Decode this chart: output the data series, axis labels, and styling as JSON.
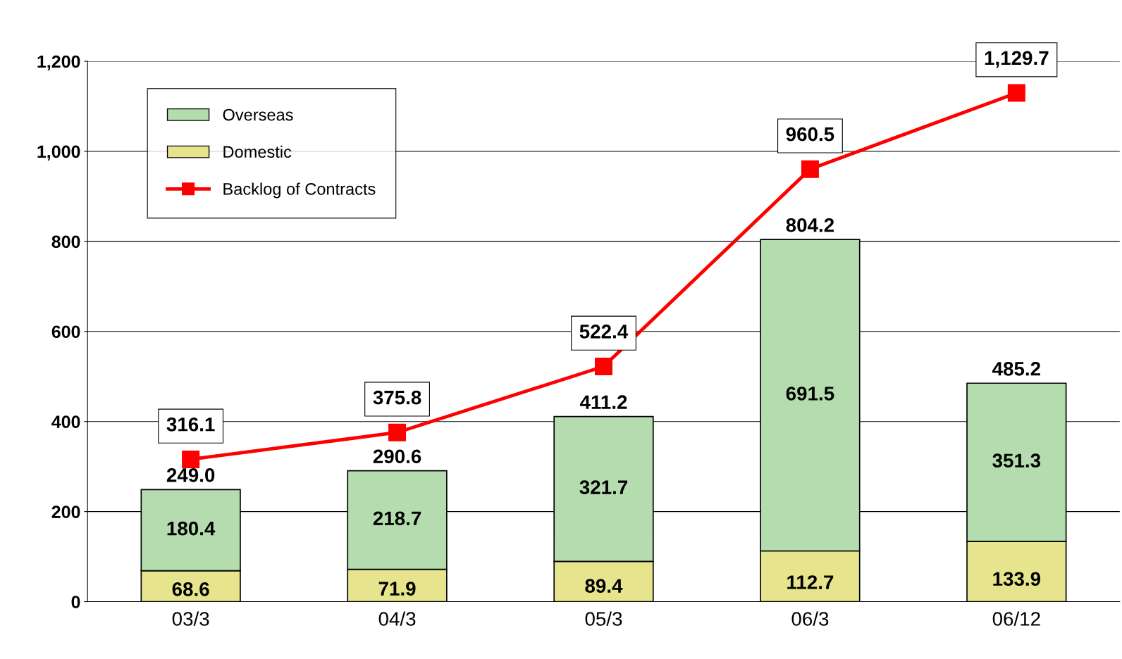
{
  "chart_data": {
    "type": "bar",
    "stacked": true,
    "categories": [
      "03/3",
      "04/3",
      "05/3",
      "06/3",
      "06/12"
    ],
    "series": [
      {
        "name": "Domestic",
        "color": "#e6e48c",
        "values": [
          68.6,
          71.9,
          89.4,
          112.7,
          133.9
        ],
        "value_labels": [
          "68.6",
          "71.9",
          "89.4",
          "112.7",
          "133.9"
        ]
      },
      {
        "name": "Overseas",
        "color": "#b4dcae",
        "values": [
          180.4,
          218.7,
          321.7,
          691.5,
          351.3
        ],
        "value_labels": [
          "180.4",
          "218.7",
          "321.7",
          "691.5",
          "351.3"
        ]
      },
      {
        "name": "Backlog of Contracts",
        "type": "line",
        "color": "#ff0000",
        "marker": "square",
        "values": [
          316.1,
          375.8,
          522.4,
          960.5,
          1129.7
        ],
        "value_labels": [
          "316.1",
          "375.8",
          "522.4",
          "960.5",
          "1,129.7"
        ]
      }
    ],
    "totals": [
      "249.0",
      "290.6",
      "411.2",
      "804.2",
      "485.2"
    ],
    "ylim": [
      0,
      1200
    ],
    "yticks": [
      0,
      200,
      400,
      600,
      800,
      {
        "value": 1000,
        "label": "1,000"
      },
      {
        "value": 1200,
        "label": "1,200"
      }
    ],
    "grid": "y",
    "legend": "top left"
  }
}
